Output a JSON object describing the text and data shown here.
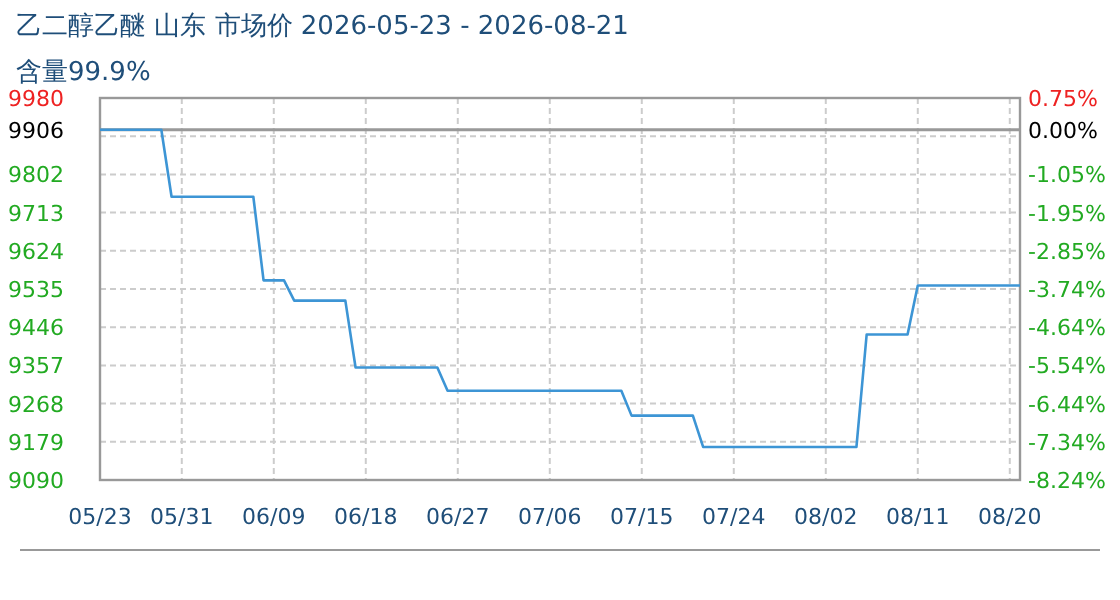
{
  "chart_data": {
    "type": "line",
    "title": "乙二醇乙醚 山东 市场价 2026-05-23 - 2026-08-21",
    "subtitle": "含量99.9%",
    "x": [
      "2026-05-23",
      "2026-05-29",
      "2026-05-30",
      "2026-06-07",
      "2026-06-08",
      "2026-06-10",
      "2026-06-11",
      "2026-06-16",
      "2026-06-17",
      "2026-06-25",
      "2026-06-26",
      "2026-07-13",
      "2026-07-14",
      "2026-07-20",
      "2026-07-21",
      "2026-08-05",
      "2026-08-06",
      "2026-08-10",
      "2026-08-11",
      "2026-08-21"
    ],
    "series": [
      {
        "color": "#3d95d5",
        "values": [
          9906,
          9906,
          9750,
          9750,
          9555,
          9555,
          9508,
          9508,
          9352,
          9352,
          9298,
          9298,
          9240,
          9240,
          9167,
          9167,
          9429,
          9429,
          9543,
          9543
        ]
      }
    ],
    "xlim": [
      "2026-05-23",
      "2026-08-21"
    ],
    "xticks": [
      {
        "value": "2026-05-23",
        "label": "05/23"
      },
      {
        "value": "2026-05-31",
        "label": "05/31"
      },
      {
        "value": "2026-06-09",
        "label": "06/09"
      },
      {
        "value": "2026-06-18",
        "label": "06/18"
      },
      {
        "value": "2026-06-27",
        "label": "06/27"
      },
      {
        "value": "2026-07-06",
        "label": "07/06"
      },
      {
        "value": "2026-07-15",
        "label": "07/15"
      },
      {
        "value": "2026-07-24",
        "label": "07/24"
      },
      {
        "value": "2026-08-02",
        "label": "08/02"
      },
      {
        "value": "2026-08-11",
        "label": "08/11"
      },
      {
        "value": "2026-08-20",
        "label": "08/20"
      }
    ],
    "ylim": [
      9090,
      9980
    ],
    "yticks": [
      9090,
      9179,
      9268,
      9357,
      9446,
      9535,
      9624,
      9713,
      9802,
      {
        "value": 9891,
        "label": null
      },
      9980
    ],
    "y2lim": [
      -8.24,
      0.75
    ],
    "y2ticks": [
      {
        "value": -8.24,
        "label": "-8.24%"
      },
      {
        "value": -7.34,
        "label": "-7.34%"
      },
      {
        "value": -6.44,
        "label": "-6.44%"
      },
      {
        "value": -5.54,
        "label": "-5.54%"
      },
      {
        "value": -4.64,
        "label": "-4.64%"
      },
      {
        "value": -3.74,
        "label": "-3.74%"
      },
      {
        "value": -2.85,
        "label": "-2.85%"
      },
      {
        "value": -1.95,
        "label": "-1.95%"
      },
      {
        "value": -1.05,
        "label": "-1.05%"
      },
      {
        "value": 0,
        "label": "0.00%"
      },
      {
        "value": 0.75,
        "label": "0.75%"
      }
    ],
    "ref_lines": [
      {
        "axis": "y",
        "value": 9906,
        "label": "9906",
        "color": "#999999"
      }
    ],
    "grid": true
  }
}
